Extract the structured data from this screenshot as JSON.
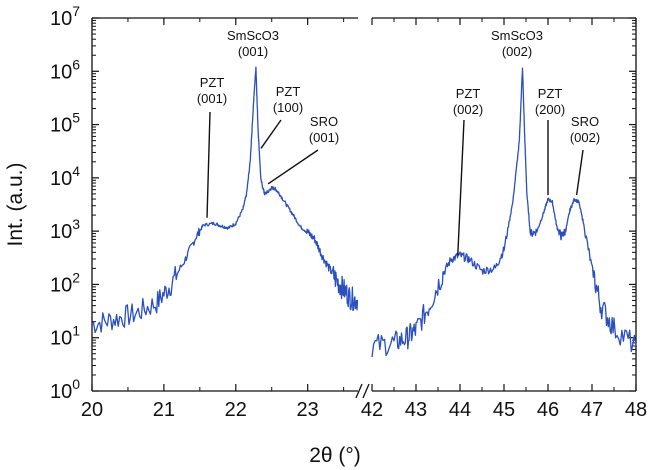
{
  "chart_data": {
    "type": "line",
    "xlabel": "2θ (°)",
    "ylabel": "Int. (a.u.)",
    "yscale": "log",
    "ylim": [
      1,
      10000000
    ],
    "y_ticks": [
      {
        "value": 1,
        "base": "10",
        "exp": "0"
      },
      {
        "value": 10,
        "base": "10",
        "exp": "1"
      },
      {
        "value": 100,
        "base": "10",
        "exp": "2"
      },
      {
        "value": 1000,
        "base": "10",
        "exp": "3"
      },
      {
        "value": 10000,
        "base": "10",
        "exp": "4"
      },
      {
        "value": 100000,
        "base": "10",
        "exp": "5"
      },
      {
        "value": 1000000,
        "base": "10",
        "exp": "6"
      },
      {
        "value": 10000000,
        "base": "10",
        "exp": "7"
      }
    ],
    "broken_x_axis": true,
    "segments": [
      {
        "xlim": [
          20,
          23.7
        ],
        "x_ticks": [
          20,
          21,
          22,
          23
        ]
      },
      {
        "xlim": [
          42,
          48
        ],
        "x_ticks": [
          42,
          43,
          44,
          45,
          46,
          47,
          48
        ]
      }
    ],
    "line_color": "#2a4fbf",
    "series": [
      {
        "segment": 0,
        "x": [
          20.0,
          20.3,
          20.6,
          20.9,
          21.1,
          21.3,
          21.45,
          21.55,
          21.7,
          21.8,
          21.9,
          22.0,
          22.1,
          22.15,
          22.2,
          22.25,
          22.28,
          22.31,
          22.35,
          22.4,
          22.45,
          22.5,
          22.55,
          22.6,
          22.7,
          22.8,
          22.9,
          23.0,
          23.1,
          23.2,
          23.3,
          23.4,
          23.5,
          23.6,
          23.7
        ],
        "y": [
          18,
          22,
          28,
          45,
          100,
          300,
          800,
          1300,
          1400,
          1250,
          1150,
          1400,
          2600,
          5000,
          20000,
          300000,
          1200000,
          80000,
          9000,
          5000,
          5500,
          6500,
          6200,
          5200,
          3200,
          2000,
          1200,
          950,
          700,
          350,
          200,
          120,
          80,
          55,
          50
        ]
      },
      {
        "segment": 1,
        "x": [
          42.0,
          42.5,
          42.8,
          43.0,
          43.3,
          43.6,
          43.8,
          44.0,
          44.2,
          44.5,
          44.8,
          45.0,
          45.2,
          45.35,
          45.42,
          45.47,
          45.52,
          45.6,
          45.75,
          45.9,
          46.0,
          46.1,
          46.2,
          46.3,
          46.4,
          46.5,
          46.6,
          46.7,
          46.8,
          47.0,
          47.2,
          47.5,
          48.0
        ],
        "y": [
          7,
          8,
          10,
          14,
          40,
          150,
          300,
          350,
          300,
          180,
          200,
          450,
          3500,
          50000,
          1200000,
          60000,
          5000,
          900,
          1000,
          2200,
          4000,
          3500,
          1200,
          800,
          1000,
          2500,
          4000,
          3500,
          1500,
          200,
          40,
          15,
          7
        ]
      }
    ],
    "annotations": [
      {
        "lines": [
          "PZT",
          "(001)"
        ],
        "segment": 0,
        "x": 21.6,
        "y": 1500
      },
      {
        "lines": [
          "SmScO3",
          "(001)"
        ],
        "segment": 0,
        "x": 22.28,
        "y": 1200000
      },
      {
        "lines": [
          "PZT",
          "(100)"
        ],
        "segment": 0,
        "x": 22.35,
        "y": 30000
      },
      {
        "lines": [
          "SRO",
          "(001)"
        ],
        "segment": 0,
        "x": 22.45,
        "y": 6500
      },
      {
        "lines": [
          "PZT",
          "(002)"
        ],
        "segment": 1,
        "x": 43.95,
        "y": 300
      },
      {
        "lines": [
          "SmScO3",
          "(002)"
        ],
        "segment": 1,
        "x": 45.42,
        "y": 1200000
      },
      {
        "lines": [
          "PZT",
          "(200)"
        ],
        "segment": 1,
        "x": 46.0,
        "y": 4000
      },
      {
        "lines": [
          "SRO",
          "(002)"
        ],
        "segment": 1,
        "x": 46.65,
        "y": 4000
      }
    ]
  }
}
